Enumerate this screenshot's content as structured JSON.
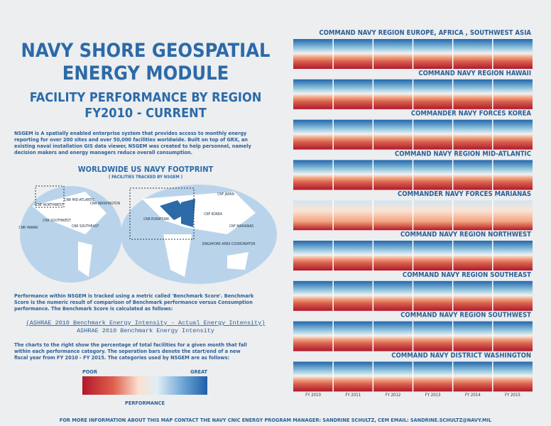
{
  "header": {
    "title_1": "NAVY SHORE GEOSPATIAL",
    "title_2": "ENERGY MODULE",
    "subtitle_1": "FACILITY PERFORMANCE BY REGION",
    "subtitle_2": "FY2010 - CURRENT"
  },
  "intro": [
    "NSGEM is A spatially enabled enterprise system that provides access to monthly energy",
    "reporting for over 200 sites and over 50,000 facilities worldwide. Built on top of GRX, an",
    "existing naval installation GIS data viewer, NSGEM was created to help personnel, namely",
    "decision makers and energy managers reduce overall consumption."
  ],
  "map": {
    "title": "WORLDWIDE US NAVY FOOTPRINT",
    "subtitle": "( FACILITIES TRACKED BY NSGEM )",
    "labels": [
      "CNF NORTHWEST",
      "CNR MID-ATLANTIC",
      "CNR WASHINGTON",
      "CNR SOUTHWEST",
      "CNR SOUTHEAST",
      "CNR HAWAII",
      "CNR EURAFSWA",
      "CNF JAPAN",
      "CNF KOREA",
      "CNF MARIANAS",
      "SINGAPORE AREA COORDINATOR"
    ]
  },
  "benchmark": [
    "Performance within NSGEM is tracked using a metric called 'Benchmark Score'. Benchmark",
    "Score is the numeric result of comparison of Benchmark performance versus Consumption",
    "performance.  The Benchmark Score is calculated as follows:"
  ],
  "formula": {
    "numerator": "(ASHRAE 2010 Benchmark Energy Intensity - Actual Energy Intensity)",
    "denominator": "ASHRAE 2010 Benchmark Energy Intensity"
  },
  "charts_note": [
    "The charts to the right show the percentage of total facilities for a given month that fall",
    "within each performance category. The seperation bars denote the start/end of a new",
    "fiscal year from FY 2010 - FY 2015. The categories used by NSGEM are as follows:"
  ],
  "legend": {
    "low": "Poor",
    "high": "Great",
    "title": "Performance"
  },
  "regions": [
    "COMMAND NAVY REGION EUROPE, AFRICA , SOUTHWEST ASIA",
    "COMMAND NAVY REGION HAWAII",
    "COMMANDER NAVY FORCES KOREA",
    "COMMAND NAVY REGION MID-ATLANTIC",
    "COMMANDER NAVY FORCES MARIANAS",
    "COMMAND NAVY REGION NORTHWEST",
    "COMMAND NAVY REGION SOUTHEAST",
    "COMMAND NAVY REGION SOUTHWEST",
    "COMMAND NAVY DISTRICT WASHINGTON"
  ],
  "fiscal_years": [
    "FY 2010",
    "FY 2011",
    "FY 2012",
    "FY 2013",
    "FY 2014",
    "FY 2015"
  ],
  "footer": "For more information about this map contact the Navy CNIC Energy Program Manager: Sandrine Schultz, CEM  Email: sandrine.schultz@navy.mil"
}
